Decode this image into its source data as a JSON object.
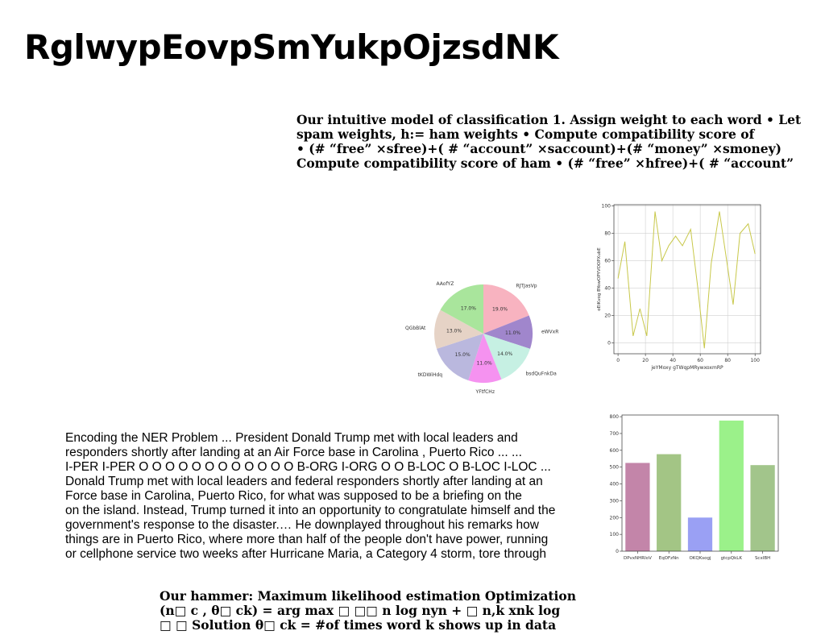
{
  "title": "RglwypEovpSmYukpOjzsdNK",
  "intro_text": {
    "lines": [
      "Our intuitive model of classification 1. Assign weight to each word • Let",
      "spam weights, h:= ham weights • Compute compatibility score of",
      "• (# “free” ×sfree)+( # “account” ×saccount)+(# “money” ×smoney)",
      "Compute compatibility score of ham • (# “free” ×hfree)+( # “account”"
    ]
  },
  "ner_text": {
    "lines": [
      "Encoding the NER Problem ... President Donald Trump met with local leaders and",
      "responders shortly after landing at an Air Force base in Carolina , Puerto Rico ... ...",
      "I-PER I-PER O O O O O O O O O O O O B-ORG I-ORG O O B-LOC O B-LOC I-LOC ...",
      "Donald Trump met with local leaders and federal responders shortly after landing at an",
      "Force base in Carolina, Puerto Rico, for what was supposed to be a briefing on the",
      "on the island. Instead, Trump turned it into an opportunity to congratulate himself and the",
      "government's response to the disaster.… He downplayed throughout his remarks how",
      "things are in Puerto Rico, where more than half of the people don't have power, running",
      "or cellphone service two weeks after Hurricane Maria, a Category 4 storm, tore through"
    ]
  },
  "hammer_text": {
    "lines": [
      "Our hammer: Maximum likelihood estimation Optimization",
      "(n□ c , θ□ ck) = arg max □ □□ n log nyn + □ n,k xnk log",
      "□ □ Solution θ□ ck = #of times word k shows up in data"
    ]
  },
  "chart_data": [
    {
      "type": "pie",
      "labels": [
        "RJTJasVp",
        "eWVxR",
        "bsdQuFnkDa",
        "YFtfCHz",
        "tKDWiHdq",
        "QGbBlAt",
        "AAofYZ"
      ],
      "values": [
        19.0,
        11.0,
        14.0,
        11.0,
        15.0,
        13.0,
        17.0
      ],
      "value_labels": [
        "19.0%",
        "11.0%",
        "14.0%",
        "11.0%",
        "15.0%",
        "13.0%",
        "17.0%"
      ],
      "colors": [
        "#f8b3c0",
        "#a086cc",
        "#c6f0e3",
        "#f592f0",
        "#bab8de",
        "#e6d3c6",
        "#a9e59c"
      ]
    },
    {
      "type": "line",
      "xlabel": "jeYMoxy gTWqpMRywxoxmRP",
      "ylabel": "oEiKvog BYowOPYVOOPXubE",
      "xlim": [
        -3,
        104
      ],
      "ylim": [
        -8,
        101
      ],
      "xticks": [
        "0",
        "20",
        "40",
        "60",
        "80",
        "100"
      ],
      "yticks": [
        "0",
        "20",
        "40",
        "60",
        "80",
        "100"
      ],
      "grid": true,
      "color": "#c8c84a",
      "x": [
        0,
        5,
        11,
        16,
        21,
        27,
        32,
        37,
        42,
        47,
        53,
        58,
        63,
        68,
        74,
        79,
        84,
        89,
        95,
        100
      ],
      "y": [
        47,
        74,
        5,
        25,
        5,
        96,
        60,
        71,
        78,
        71,
        83,
        42,
        -4,
        58,
        96,
        62,
        28,
        80,
        87,
        65
      ]
    },
    {
      "type": "bar",
      "categories": [
        "DPvxNHRIoV",
        "EqOFzNn",
        "OKQKsogj",
        "gtcpQkLK",
        "ScxIBH"
      ],
      "values": [
        525,
        577,
        200,
        777,
        512
      ],
      "colors": [
        "#c385a9",
        "#a3c585",
        "#9aa0f4",
        "#9bf18a",
        "#a2c58b"
      ],
      "ylim": [
        0,
        810
      ],
      "yticks": [
        "0",
        "100",
        "200",
        "300",
        "400",
        "500",
        "600",
        "700",
        "800"
      ]
    }
  ]
}
